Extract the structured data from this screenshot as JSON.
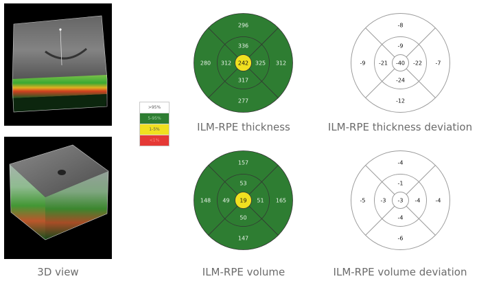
{
  "captions": {
    "view3d": "3D view",
    "thickness": "ILM-RPE thickness",
    "thickness_dev": "ILM-RPE thickness deviation",
    "volume": "ILM-RPE volume",
    "volume_dev": "ILM-RPE volume deviation"
  },
  "legend": [
    {
      "label": ">95%",
      "color": "#ffffff",
      "text": "#555555"
    },
    {
      "label": "5-95%",
      "color": "#2e7d32",
      "text": "#a5d6a7"
    },
    {
      "label": "1-5%",
      "color": "#f0e020",
      "text": "#555555"
    },
    {
      "label": "<1%",
      "color": "#e53935",
      "text": "#ff8a80"
    }
  ],
  "colors": {
    "normal_green": "#2e7d32",
    "yellow": "#f0e020",
    "chart_line": "#333333",
    "dev_line": "#9a9a9a"
  },
  "maps": {
    "thickness": {
      "center": "242",
      "inner_top": "336",
      "inner_left": "312",
      "inner_right": "325",
      "inner_bottom": "317",
      "outer_top": "296",
      "outer_left": "280",
      "outer_right": "312",
      "outer_bottom": "277"
    },
    "thickness_dev": {
      "center": "-40",
      "inner_top": "-9",
      "inner_left": "-21",
      "inner_right": "-22",
      "inner_bottom": "-24",
      "outer_top": "-8",
      "outer_left": "-9",
      "outer_right": "-7",
      "outer_bottom": "-12"
    },
    "volume": {
      "center": "19",
      "inner_top": "53",
      "inner_left": "49",
      "inner_right": "51",
      "inner_bottom": "50",
      "outer_top": "157",
      "outer_left": "148",
      "outer_right": "165",
      "outer_bottom": "147"
    },
    "volume_dev": {
      "center": "-3",
      "inner_top": "-1",
      "inner_left": "-3",
      "inner_right": "-4",
      "inner_bottom": "-4",
      "outer_top": "-4",
      "outer_left": "-5",
      "outer_right": "-4",
      "outer_bottom": "-6"
    }
  }
}
